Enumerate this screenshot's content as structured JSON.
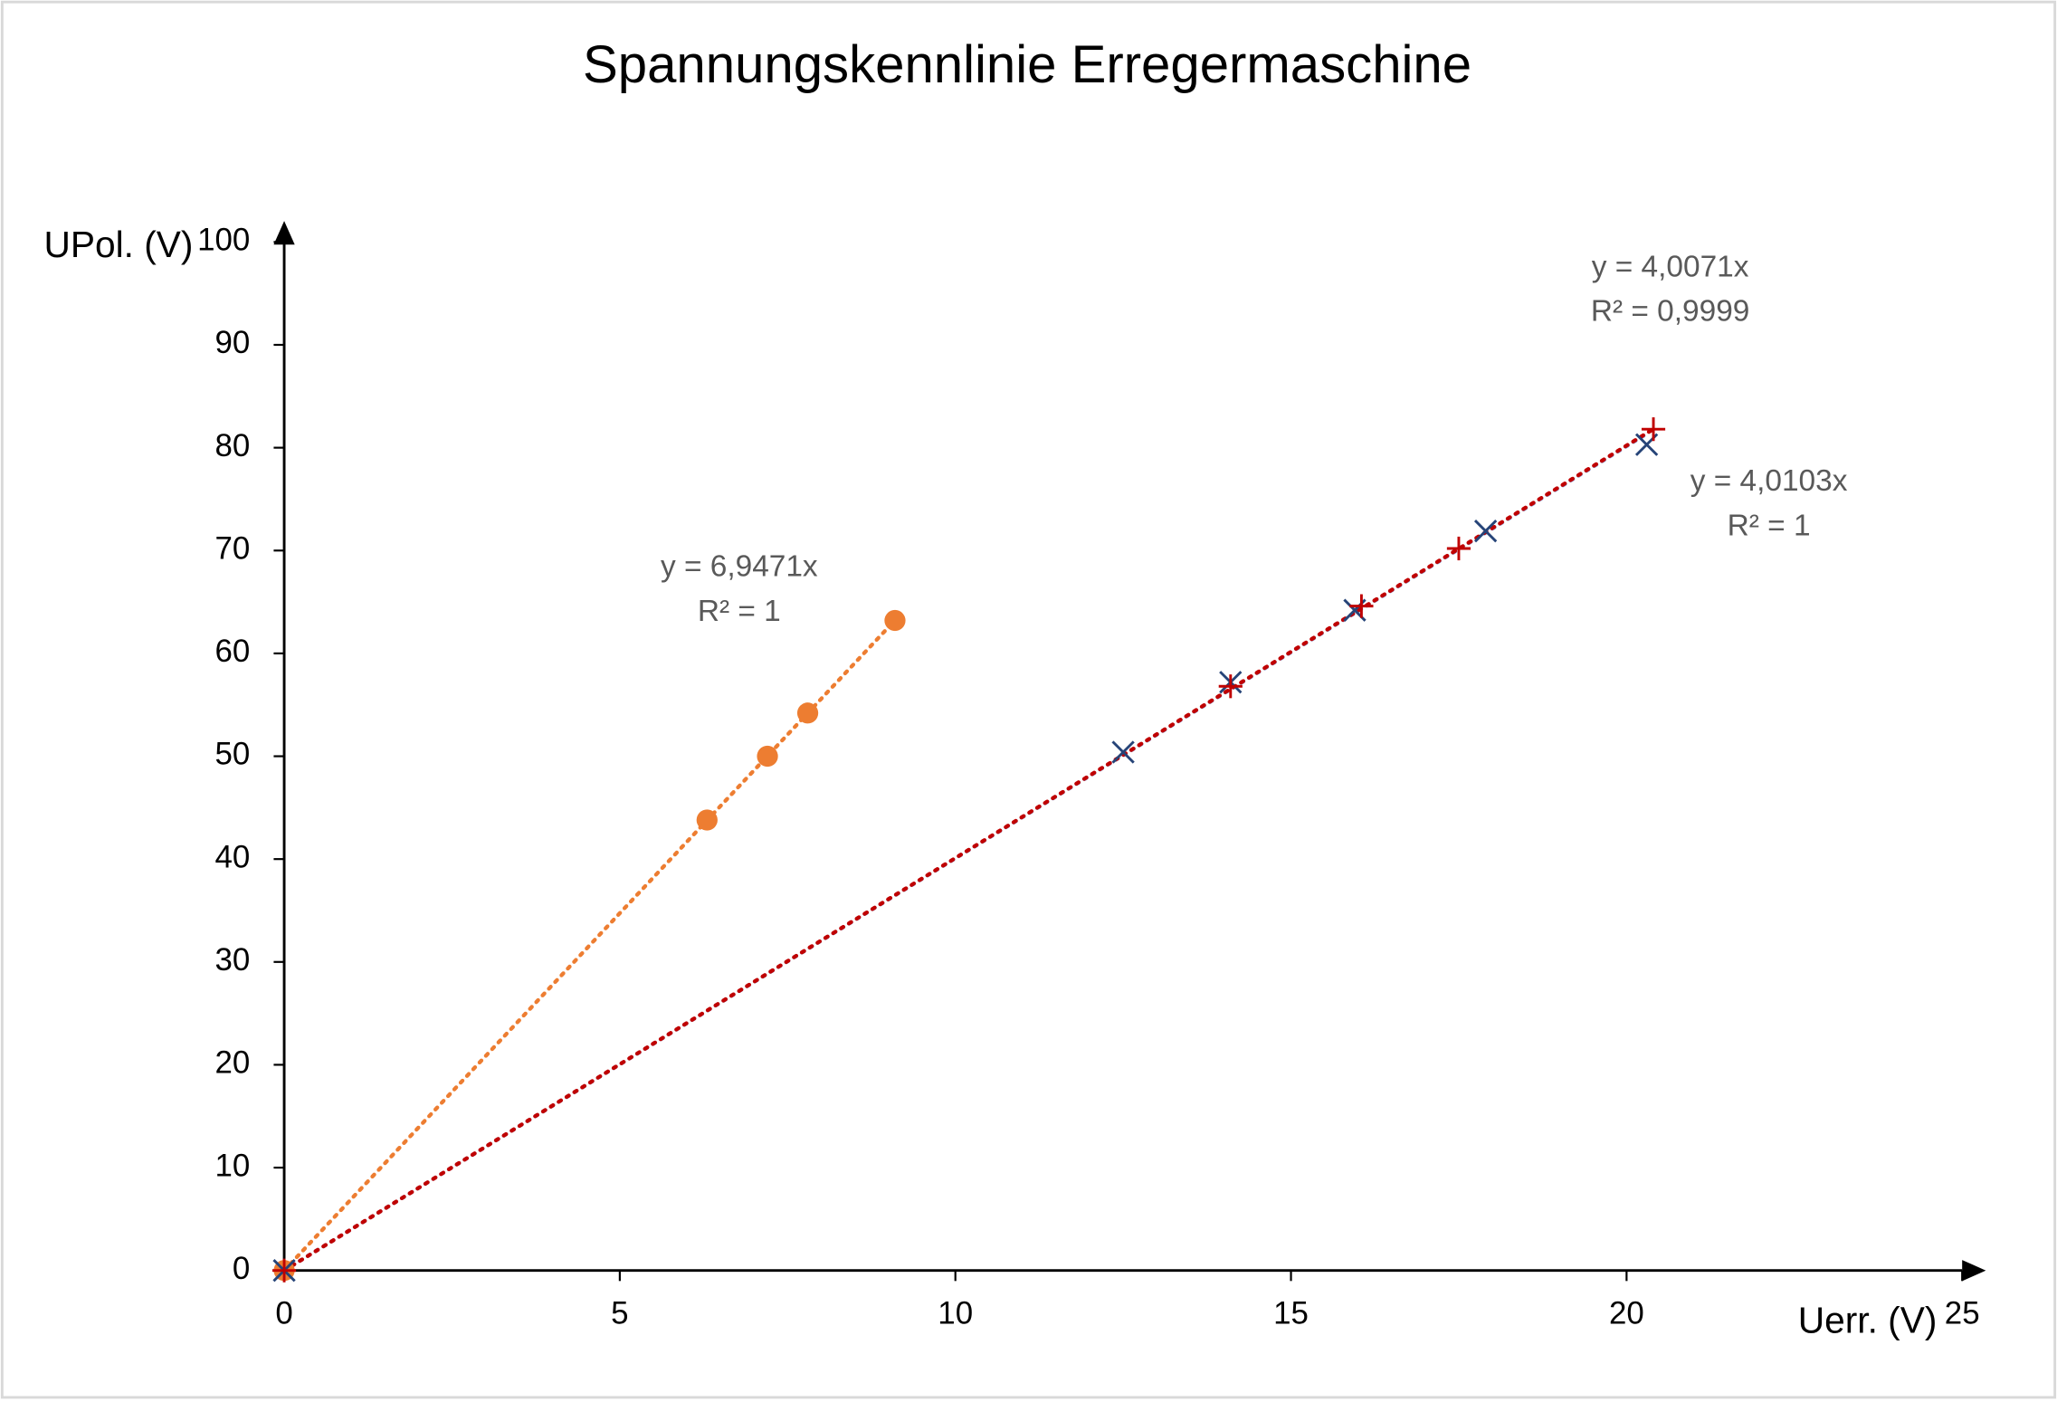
{
  "chart_data": {
    "type": "scatter",
    "title": "Spannungskennlinie Erregermaschine",
    "x_label": "Uerr. (V)",
    "y_label": "UPol. (V)",
    "xlim": [
      0,
      25
    ],
    "xticks": [
      0,
      5,
      10,
      15,
      20,
      25
    ],
    "ylim": [
      0,
      100
    ],
    "yticks": [
      0,
      10,
      20,
      30,
      40,
      50,
      60,
      70,
      80,
      90,
      100
    ],
    "series": [
      {
        "marker": "circle",
        "color": "#ed7d31",
        "trend_color": "#ed7d31",
        "x": [
          0,
          6.3,
          7.2,
          7.8,
          9.1
        ],
        "y": [
          0,
          43.8,
          50,
          54.2,
          63.2
        ],
        "trendline": {
          "slope": 6.9471,
          "equation": "y = 6,9471x",
          "r_squared": "R² = 1"
        }
      },
      {
        "marker": "x",
        "color": "#264478",
        "trend_color": "#8faadc",
        "x": [
          0,
          12.5,
          14.1,
          15.95,
          17.9,
          20.3
        ],
        "y": [
          0,
          50.4,
          57.2,
          64.2,
          71.9,
          80.3
        ],
        "trendline": {
          "slope": 4.0071,
          "equation": "y = 4,0071x",
          "r_squared": "R² = 0,9999"
        }
      },
      {
        "marker": "plus",
        "color": "#c00000",
        "trend_color": "#c00000",
        "x": [
          0,
          14.1,
          16.05,
          17.5,
          20.4
        ],
        "y": [
          0,
          56.8,
          64.6,
          70.2,
          81.8
        ],
        "trendline": {
          "slope": 4.0103,
          "equation": "y = 4,0103x",
          "r_squared": "R² = 1"
        }
      }
    ]
  }
}
